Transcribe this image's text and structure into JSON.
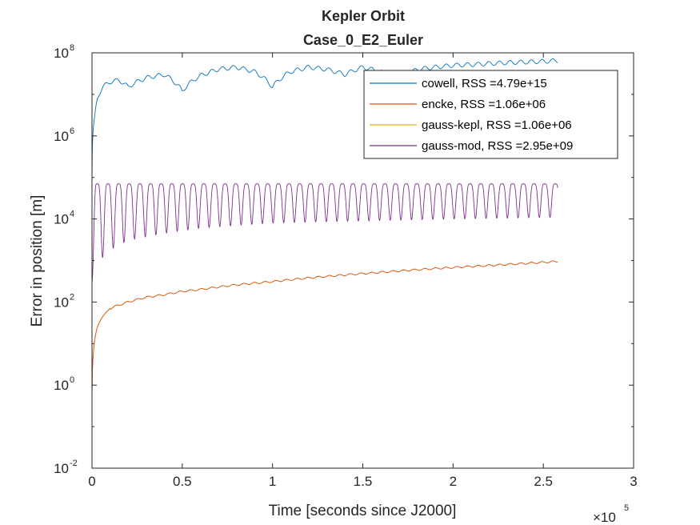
{
  "chart_data": {
    "type": "line",
    "title": "Kepler Orbit",
    "subtitle": "Case_0_E2_Euler",
    "xlabel": "Time [seconds since J2000]",
    "ylabel": "Error in position [m]",
    "x_exponent_label": "×10",
    "x_exponent_value": "5",
    "x_scale_factor": 100000,
    "xlim": [
      0,
      300000
    ],
    "ylim": [
      0.01,
      100000000
    ],
    "yscale": "log",
    "grid": false,
    "legend_position": "top-right",
    "x_ticks": [
      0,
      50000,
      100000,
      150000,
      200000,
      250000,
      300000
    ],
    "x_tick_labels": [
      "0",
      "0.5",
      "1",
      "1.5",
      "2",
      "2.5",
      "3"
    ],
    "y_ticks": [
      0.01,
      1,
      100,
      10000,
      1000000,
      100000000
    ],
    "y_tick_labels": [
      {
        "base": "10",
        "exp": "-2"
      },
      {
        "base": "10",
        "exp": "0"
      },
      {
        "base": "10",
        "exp": "2"
      },
      {
        "base": "10",
        "exp": "4"
      },
      {
        "base": "10",
        "exp": "6"
      },
      {
        "base": "10",
        "exp": "8"
      }
    ],
    "series": [
      {
        "name": "cowell, RSS =4.79e+15",
        "color": "#0072BD",
        "x": [
          0,
          1500,
          3000,
          6000,
          10000,
          15000,
          20000,
          30000,
          40000,
          50000,
          60000,
          70000,
          80000,
          90000,
          100000,
          110000,
          120000,
          130000,
          140000,
          150000,
          160000,
          170000,
          180000,
          190000,
          200000,
          210000,
          220000,
          230000,
          240000,
          250000,
          258000
        ],
        "y": [
          100000,
          3000000,
          8000000,
          15000000,
          20000000,
          22000000,
          15000000,
          25000000,
          30000000,
          12000000,
          28000000,
          40000000,
          45000000,
          35000000,
          15000000,
          35000000,
          45000000,
          40000000,
          30000000,
          45000000,
          35000000,
          20000000,
          40000000,
          45000000,
          50000000,
          52000000,
          55000000,
          58000000,
          60000000,
          62000000,
          65000000
        ]
      },
      {
        "name": "encke, RSS =1.06e+06",
        "color": "#D95319",
        "x": [
          0,
          1000,
          3000,
          6000,
          10000,
          20000,
          30000,
          40000,
          50000,
          60000,
          80000,
          100000,
          120000,
          140000,
          160000,
          180000,
          200000,
          220000,
          240000,
          258000
        ],
        "y": [
          0.5,
          8,
          25,
          45,
          70,
          100,
          130,
          150,
          180,
          200,
          260,
          310,
          380,
          450,
          520,
          600,
          680,
          760,
          850,
          950
        ]
      },
      {
        "name": "gauss-kepl, RSS =1.06e+06",
        "color": "#EDB120",
        "x": [
          0,
          1000,
          3000,
          6000,
          10000,
          20000,
          30000,
          40000,
          50000,
          60000,
          80000,
          100000,
          120000,
          140000,
          160000,
          180000,
          200000,
          220000,
          240000,
          258000
        ],
        "y": [
          0.5,
          8,
          25,
          45,
          70,
          100,
          130,
          150,
          180,
          200,
          260,
          310,
          380,
          450,
          520,
          600,
          680,
          760,
          850,
          950
        ]
      },
      {
        "name": "gauss-mod, RSS =2.95e+09",
        "color": "#7E2F8E",
        "x": [
          0,
          2000,
          6000,
          12000,
          20000,
          40000,
          60000,
          100000,
          150000,
          200000,
          258000
        ],
        "y": [
          4000,
          70000,
          70000,
          70000,
          70000,
          70000,
          70000,
          70000,
          70000,
          70000,
          70000
        ],
        "oscillation_period": 5900,
        "oscillation_min": [
          300,
          600,
          1200,
          2000,
          3000,
          4500,
          6000,
          8000,
          9000,
          10000,
          11000
        ]
      }
    ]
  }
}
